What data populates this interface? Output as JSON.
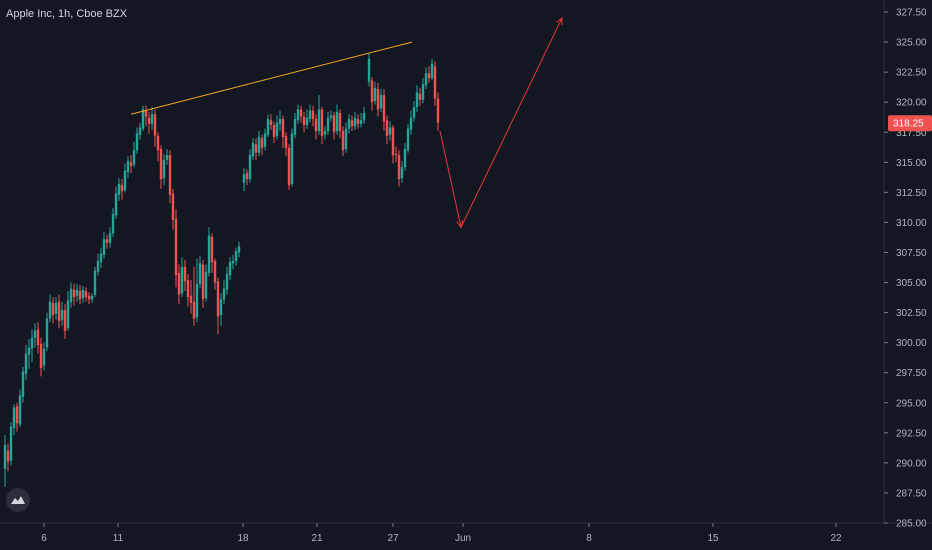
{
  "header": {
    "title": "Apple Inc, 1h, Cboe BZX"
  },
  "logo": {
    "icon": "tradingview-logo-icon"
  },
  "colors": {
    "background": "#131722",
    "up": "#26a69a",
    "down": "#ef5350",
    "trendline": "#f5a623",
    "projection": "#e53935",
    "axis_text": "#b2b5be",
    "price_tag": "#ef5350"
  },
  "chart_data": {
    "type": "candlestick",
    "title": "Apple Inc, 1h, Cboe BZX",
    "ylim": [
      285.0,
      328.5
    ],
    "x_range": [
      0,
      880
    ],
    "x_ticks": [
      {
        "x": 44,
        "label": "6"
      },
      {
        "x": 118,
        "label": "11"
      },
      {
        "x": 243,
        "label": "18"
      },
      {
        "x": 317,
        "label": "21"
      },
      {
        "x": 393,
        "label": "27"
      },
      {
        "x": 463,
        "label": "Jun"
      },
      {
        "x": 589,
        "label": "8"
      },
      {
        "x": 713,
        "label": "15"
      },
      {
        "x": 836,
        "label": "22"
      }
    ],
    "y_ticks": [
      "327.50",
      "325.00",
      "322.50",
      "320.00",
      "317.50",
      "315.00",
      "312.50",
      "310.00",
      "307.50",
      "305.00",
      "302.50",
      "300.00",
      "297.50",
      "295.00",
      "292.50",
      "290.00",
      "287.50",
      "285.00"
    ],
    "last_price": "318.25",
    "last_price_value": 318.25,
    "candles": [
      [
        5,
        289.5,
        291.5,
        288.0,
        292.3
      ],
      [
        8,
        291.0,
        290.1,
        289.3,
        291.6
      ],
      [
        11,
        290.2,
        293.0,
        289.8,
        293.4
      ],
      [
        14,
        292.9,
        294.6,
        292.3,
        294.9
      ],
      [
        17,
        294.7,
        293.3,
        292.6,
        295.0
      ],
      [
        20,
        293.2,
        295.6,
        293.0,
        296.1
      ],
      [
        23,
        295.5,
        297.6,
        295.0,
        298.0
      ],
      [
        26,
        297.4,
        299.1,
        296.9,
        299.8
      ],
      [
        29,
        299.0,
        299.6,
        297.8,
        300.3
      ],
      [
        32,
        299.5,
        300.4,
        298.4,
        301.1
      ],
      [
        35,
        300.4,
        301.0,
        299.6,
        301.6
      ],
      [
        38,
        301.1,
        299.8,
        299.1,
        301.7
      ],
      [
        41,
        299.9,
        297.9,
        297.2,
        300.4
      ],
      [
        44,
        298.1,
        299.5,
        297.7,
        300.0
      ],
      [
        47,
        299.6,
        302.0,
        299.3,
        302.5
      ],
      [
        50,
        302.0,
        303.4,
        301.7,
        304.0
      ],
      [
        53,
        303.3,
        302.3,
        301.6,
        303.8
      ],
      [
        56,
        302.4,
        303.3,
        301.9,
        303.8
      ],
      [
        59,
        303.4,
        301.8,
        301.2,
        304.0
      ],
      [
        62,
        301.9,
        302.7,
        301.4,
        303.4
      ],
      [
        65,
        302.7,
        301.0,
        300.3,
        303.2
      ],
      [
        68,
        301.2,
        303.5,
        301.0,
        304.3
      ],
      [
        71,
        303.4,
        304.5,
        302.9,
        305.0
      ],
      [
        74,
        304.4,
        303.8,
        303.1,
        304.9
      ],
      [
        77,
        303.9,
        304.4,
        303.4,
        304.9
      ],
      [
        80,
        304.3,
        303.6,
        303.2,
        304.8
      ],
      [
        83,
        303.7,
        304.4,
        303.3,
        304.7
      ],
      [
        86,
        304.3,
        303.8,
        303.4,
        304.6
      ],
      [
        89,
        303.9,
        303.6,
        303.2,
        304.2
      ],
      [
        92,
        303.6,
        303.9,
        303.3,
        304.1
      ],
      [
        95,
        304.0,
        306.0,
        303.8,
        306.3
      ],
      [
        98,
        305.9,
        306.8,
        305.6,
        307.4
      ],
      [
        101,
        306.7,
        307.4,
        306.2,
        307.9
      ],
      [
        104,
        307.3,
        308.6,
        307.0,
        309.2
      ],
      [
        107,
        308.6,
        308.3,
        307.8,
        309.0
      ],
      [
        110,
        308.3,
        309.1,
        307.9,
        309.6
      ],
      [
        113,
        309.1,
        310.7,
        308.8,
        311.2
      ],
      [
        116,
        310.6,
        312.4,
        310.3,
        313.0
      ],
      [
        119,
        312.3,
        313.2,
        311.8,
        313.7
      ],
      [
        122,
        313.1,
        312.6,
        311.9,
        313.6
      ],
      [
        125,
        312.7,
        314.3,
        312.5,
        314.9
      ],
      [
        128,
        314.2,
        315.1,
        313.7,
        315.5
      ],
      [
        131,
        315.0,
        314.7,
        314.1,
        315.6
      ],
      [
        134,
        314.8,
        316.0,
        314.6,
        316.7
      ],
      [
        137,
        316.0,
        317.4,
        315.7,
        317.9
      ],
      [
        140,
        317.3,
        317.9,
        316.9,
        318.3
      ],
      [
        143,
        317.8,
        319.4,
        317.6,
        319.7
      ],
      [
        146,
        319.3,
        318.8,
        318.0,
        319.7
      ],
      [
        149,
        318.7,
        318.2,
        317.4,
        319.2
      ],
      [
        152,
        318.2,
        319.0,
        317.7,
        319.6
      ],
      [
        155,
        319.0,
        317.2,
        316.3,
        319.4
      ],
      [
        158,
        317.2,
        316.0,
        315.1,
        317.5
      ],
      [
        161,
        316.1,
        313.6,
        312.8,
        316.4
      ],
      [
        164,
        313.7,
        315.2,
        313.1,
        315.7
      ],
      [
        167,
        315.2,
        315.6,
        314.8,
        316.1
      ],
      [
        170,
        315.6,
        312.3,
        311.6,
        316.0
      ],
      [
        173,
        312.4,
        310.2,
        309.4,
        312.8
      ],
      [
        176,
        310.3,
        305.6,
        304.6,
        311.1
      ],
      [
        179,
        305.8,
        304.0,
        303.2,
        306.5
      ],
      [
        182,
        304.1,
        306.3,
        303.8,
        307.1
      ],
      [
        185,
        306.3,
        305.1,
        304.3,
        306.9
      ],
      [
        188,
        305.2,
        303.8,
        303.0,
        305.7
      ],
      [
        191,
        303.9,
        303.3,
        302.4,
        305.2
      ],
      [
        194,
        303.4,
        302.0,
        301.4,
        306.3
      ],
      [
        197,
        302.1,
        304.9,
        301.7,
        307.0
      ],
      [
        200,
        304.9,
        306.6,
        304.5,
        307.2
      ],
      [
        203,
        306.5,
        303.6,
        302.9,
        306.9
      ],
      [
        206,
        303.7,
        305.9,
        303.4,
        306.5
      ],
      [
        209,
        305.8,
        308.9,
        305.5,
        309.6
      ],
      [
        212,
        308.8,
        306.7,
        305.8,
        309.1
      ],
      [
        215,
        306.8,
        305.0,
        304.4,
        307.0
      ],
      [
        218,
        305.1,
        302.2,
        300.7,
        305.4
      ],
      [
        221,
        302.3,
        303.6,
        301.4,
        304.1
      ],
      [
        224,
        303.6,
        304.5,
        303.2,
        305.2
      ],
      [
        227,
        304.4,
        305.7,
        304.0,
        306.3
      ],
      [
        230,
        305.6,
        306.7,
        305.2,
        307.1
      ],
      [
        233,
        306.6,
        306.8,
        306.1,
        307.3
      ],
      [
        236,
        306.8,
        307.6,
        306.4,
        307.9
      ],
      [
        239,
        307.5,
        308.0,
        307.1,
        308.4
      ],
      [
        244,
        313.3,
        314.0,
        312.6,
        314.5
      ],
      [
        247,
        314.1,
        313.6,
        313.1,
        314.4
      ],
      [
        250,
        313.6,
        315.6,
        313.3,
        316.1
      ],
      [
        253,
        315.5,
        316.6,
        315.2,
        317.0
      ],
      [
        256,
        316.5,
        315.8,
        315.2,
        317.0
      ],
      [
        259,
        315.8,
        317.1,
        315.5,
        317.6
      ],
      [
        262,
        317.0,
        316.2,
        315.6,
        317.3
      ],
      [
        265,
        316.3,
        317.4,
        316.0,
        317.8
      ],
      [
        268,
        317.3,
        318.6,
        317.1,
        319.0
      ],
      [
        271,
        318.5,
        318.1,
        317.7,
        319.0
      ],
      [
        274,
        318.1,
        317.1,
        316.6,
        318.4
      ],
      [
        277,
        317.2,
        318.3,
        316.9,
        318.9
      ],
      [
        280,
        318.2,
        318.6,
        317.6,
        319.3
      ],
      [
        283,
        318.6,
        317.1,
        316.2,
        318.9
      ],
      [
        286,
        317.2,
        316.2,
        315.5,
        317.5
      ],
      [
        289,
        316.2,
        313.1,
        312.7,
        316.5
      ],
      [
        292,
        313.2,
        317.4,
        313.0,
        317.8
      ],
      [
        295,
        317.3,
        318.6,
        317.0,
        319.1
      ],
      [
        298,
        318.5,
        319.4,
        318.2,
        319.8
      ],
      [
        301,
        319.4,
        318.8,
        318.3,
        319.7
      ],
      [
        304,
        318.8,
        318.1,
        317.5,
        319.2
      ],
      [
        307,
        318.1,
        318.7,
        317.8,
        319.4
      ],
      [
        310,
        318.6,
        319.3,
        318.3,
        319.8
      ],
      [
        313,
        319.3,
        318.6,
        318.0,
        319.7
      ],
      [
        316,
        318.6,
        317.6,
        316.9,
        319.0
      ],
      [
        319,
        317.6,
        319.4,
        317.3,
        320.6
      ],
      [
        322,
        319.4,
        317.2,
        316.5,
        319.6
      ],
      [
        325,
        317.3,
        317.6,
        316.9,
        318.0
      ],
      [
        328,
        317.6,
        318.7,
        317.3,
        319.2
      ],
      [
        331,
        318.7,
        318.9,
        318.4,
        319.3
      ],
      [
        334,
        318.9,
        317.5,
        316.9,
        319.2
      ],
      [
        337,
        317.6,
        319.2,
        317.3,
        319.8
      ],
      [
        340,
        319.1,
        317.6,
        317.0,
        319.4
      ],
      [
        343,
        317.6,
        316.0,
        315.5,
        318.0
      ],
      [
        346,
        316.1,
        317.8,
        315.8,
        318.3
      ],
      [
        349,
        317.8,
        318.6,
        317.4,
        319.0
      ],
      [
        352,
        318.5,
        318.0,
        317.6,
        318.9
      ],
      [
        355,
        318.0,
        318.7,
        317.7,
        319.2
      ],
      [
        358,
        318.6,
        318.2,
        317.8,
        319.0
      ],
      [
        361,
        318.2,
        318.5,
        317.9,
        319.1
      ],
      [
        364,
        318.5,
        319.1,
        318.2,
        319.6
      ],
      [
        369,
        321.7,
        323.6,
        321.3,
        324.1
      ],
      [
        372,
        321.8,
        320.0,
        319.3,
        322.1
      ],
      [
        375,
        320.1,
        321.2,
        319.8,
        321.7
      ],
      [
        378,
        321.1,
        319.4,
        318.8,
        321.6
      ],
      [
        381,
        319.5,
        320.6,
        319.2,
        321.1
      ],
      [
        384,
        320.6,
        318.4,
        317.6,
        321.1
      ],
      [
        387,
        318.5,
        317.2,
        316.5,
        318.9
      ],
      [
        390,
        317.3,
        317.9,
        316.8,
        318.4
      ],
      [
        393,
        317.9,
        315.6,
        314.9,
        318.1
      ],
      [
        396,
        315.7,
        315.6,
        315.0,
        316.3
      ],
      [
        399,
        315.6,
        313.6,
        313.0,
        316.0
      ],
      [
        402,
        313.7,
        314.6,
        313.3,
        315.1
      ],
      [
        405,
        314.6,
        316.1,
        314.3,
        316.6
      ],
      [
        408,
        316.0,
        317.8,
        315.8,
        318.2
      ],
      [
        411,
        317.7,
        318.7,
        317.3,
        319.3
      ],
      [
        414,
        318.7,
        319.6,
        318.4,
        320.1
      ],
      [
        417,
        319.6,
        320.8,
        319.2,
        321.4
      ],
      [
        420,
        320.7,
        320.2,
        319.7,
        321.2
      ],
      [
        423,
        320.2,
        321.5,
        319.9,
        322.0
      ],
      [
        426,
        321.4,
        322.4,
        321.1,
        322.9
      ],
      [
        429,
        322.4,
        322.0,
        321.6,
        323.0
      ],
      [
        432,
        322.0,
        323.2,
        321.8,
        323.6
      ],
      [
        435,
        323.0,
        320.3,
        319.7,
        323.4
      ],
      [
        438,
        320.3,
        318.3,
        317.6,
        320.8
      ]
    ],
    "annotations": {
      "trendline": {
        "x1": 131,
        "y1": 319.0,
        "x2": 412,
        "y2": 325.0
      },
      "projection": [
        {
          "x": 440,
          "y": 317.6
        },
        {
          "x": 461,
          "y": 309.6
        },
        {
          "x": 562,
          "y": 327.0
        }
      ]
    }
  }
}
